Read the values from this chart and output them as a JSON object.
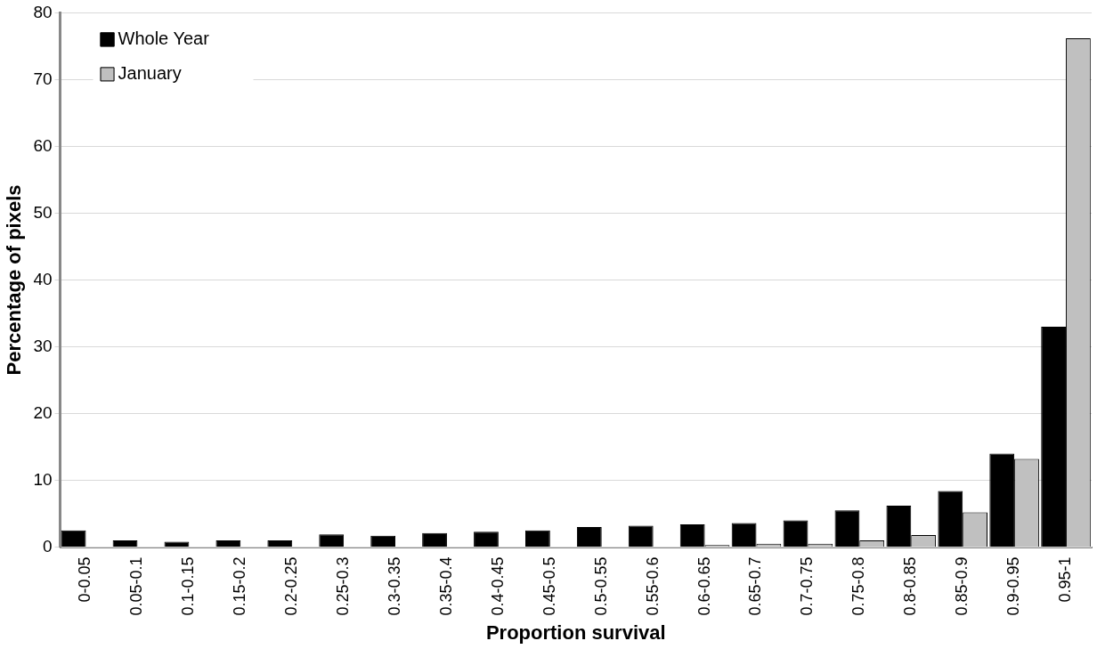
{
  "chart_data": {
    "type": "bar",
    "xlabel": "Proportion survival",
    "ylabel": "Percentage of pixels",
    "categories": [
      "0-0.05",
      "0.05-0.1",
      "0.1-0.15",
      "0.15-0.2",
      "0.2-0.25",
      "0.25-0.3",
      "0.3-0.35",
      "0.35-0.4",
      "0.4-0.45",
      "0.45-0.5",
      "0.5-0.55",
      "0.55-0.6",
      "0.6-0.65",
      "0.65-0.7",
      "0.7-0.75",
      "0.75-0.8",
      "0.8-0.85",
      "0.85-0.9",
      "0.9-0.95",
      "0.95-1"
    ],
    "series": [
      {
        "name": "Whole Year",
        "color": "#000000",
        "values": [
          2.5,
          1.0,
          0.8,
          1.0,
          1.0,
          1.9,
          1.7,
          2.1,
          2.3,
          2.5,
          3.0,
          3.2,
          3.4,
          3.6,
          4.0,
          5.5,
          6.2,
          8.4,
          14.0,
          33.0
        ]
      },
      {
        "name": "January",
        "color": "#c0c0c0",
        "values": [
          0,
          0,
          0,
          0,
          0,
          0,
          0,
          0,
          0,
          0,
          0,
          0,
          0.3,
          0.5,
          0.5,
          1.0,
          1.8,
          5.2,
          13.2,
          76.2
        ]
      }
    ],
    "ylim": [
      0,
      80
    ],
    "yticks": [
      0,
      10,
      20,
      30,
      40,
      50,
      60,
      70,
      80
    ],
    "grid": "y",
    "legend": "top left"
  }
}
